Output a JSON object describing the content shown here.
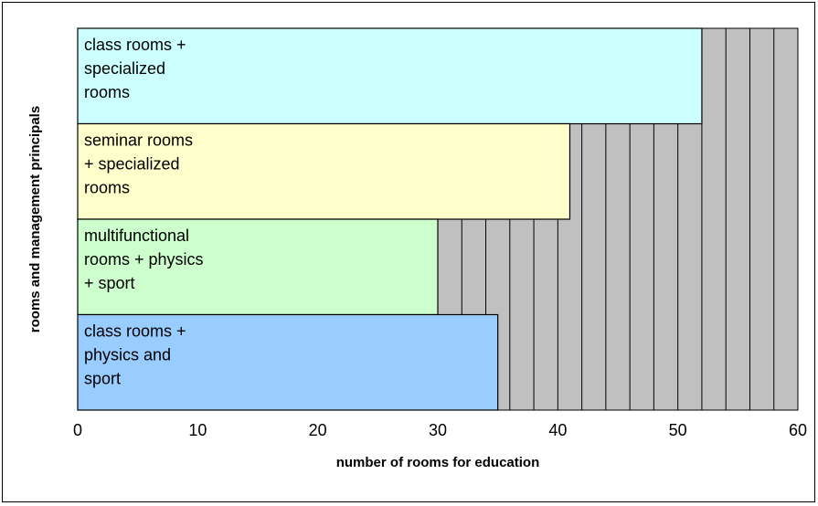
{
  "chart_data": {
    "type": "bar",
    "orientation": "horizontal",
    "title": "",
    "xlabel": "number of rooms for education",
    "ylabel": "rooms and management principals",
    "xlim": [
      0,
      60
    ],
    "x_ticks": [
      0,
      10,
      20,
      30,
      40,
      50,
      60
    ],
    "grid": true,
    "legend": "none",
    "plot_background": "#c0c0c0",
    "categories": [
      {
        "label": [
          "class rooms +",
          "specialized",
          "rooms"
        ],
        "value": 52,
        "color": "#ccffff"
      },
      {
        "label": [
          "seminar rooms",
          "+ specialized",
          "rooms"
        ],
        "value": 41,
        "color": "#ffffcc"
      },
      {
        "label": [
          "multifunctional",
          "rooms + physics",
          "+ sport"
        ],
        "value": 30,
        "color": "#ccffcc"
      },
      {
        "label": [
          "class rooms +",
          "physics and",
          "sport"
        ],
        "value": 35,
        "color": "#99ccff"
      }
    ]
  }
}
